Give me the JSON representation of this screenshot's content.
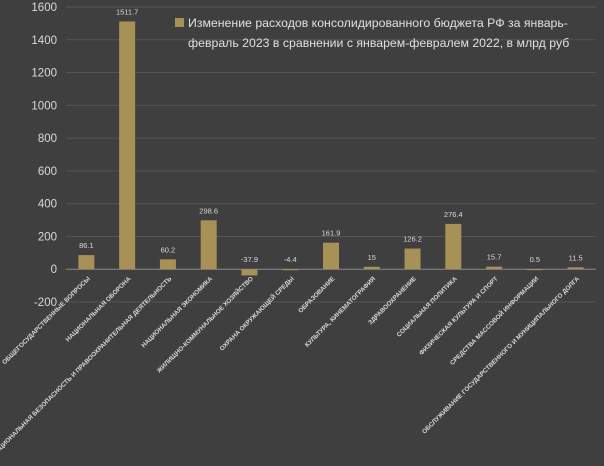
{
  "chart_data": {
    "type": "bar",
    "legend": {
      "position": "top-right",
      "lines": [
        "Изменение расходов консолидированного бюджета РФ за январь-",
        "февраль 2023 в сравнении с январем-февралем 2022, в млрд руб"
      ]
    },
    "series": [
      {
        "name": "Изменение расходов консолидированного бюджета РФ за январь-февраль 2023 в сравнении с январем-февралем 2022, в млрд руб",
        "color": "#a89156"
      }
    ],
    "categories": [
      "ОБЩЕГОСУДАРСТВЕННЫЕ ВОПРОСЫ",
      "НАЦИОНАЛЬНАЯ ОБОРОНА",
      "НАЦИОНАЛЬНАЯ БЕЗОПАСНОСТЬ И ПРАВООХРАНИТЕЛЬНАЯ ДЕЯТЕЛЬНОСТЬ",
      "НАЦИОНАЛЬНАЯ ЭКОНОМИКА",
      "ЖИЛИЩНО-КОММУНАЛЬНОЕ ХОЗЯЙСТВО",
      "ОХРАНА ОКРУЖАЮЩЕЙ СРЕДЫ",
      "ОБРАЗОВАНИЕ",
      "КУЛЬТУРА, КИНЕМАТОГРАФИЯ",
      "ЗДРАВООХРАНЕНИЕ",
      "СОЦИАЛЬНАЯ ПОЛИТИКА",
      "ФИЗИЧЕСКАЯ КУЛЬТУРА И СПОРТ",
      "СРЕДСТВА МАССОВОЙ ИНФОРМАЦИИ",
      "ОБСЛУЖИВАНИЕ ГОСУДАРСТВЕННОГО И МУНИЦИПАЛЬНОГО ДОЛГА"
    ],
    "values": [
      86.1,
      1511.7,
      60.2,
      298.6,
      -37.9,
      -4.4,
      161.9,
      15,
      126.2,
      276.4,
      15.7,
      0.5,
      11.5
    ],
    "value_labels": [
      "86.1",
      "1511.7",
      "60.2",
      "298.6",
      "-37.9",
      "-4.4",
      "161.9",
      "15",
      "126.2",
      "276.4",
      "15.7",
      "0.5",
      "11.5"
    ],
    "yticks": [
      -200,
      0,
      200,
      400,
      600,
      800,
      1000,
      1200,
      1400,
      1600
    ],
    "ylim": [
      -200,
      1600
    ],
    "xlabel": "",
    "ylabel": "",
    "grid": true
  }
}
